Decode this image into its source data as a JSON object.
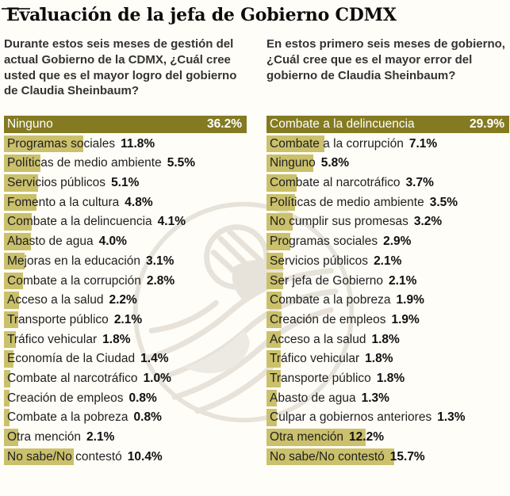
{
  "title": "Evaluación de la jefa de Gobierno CDMX",
  "watermark": "el-universal-eagle-emblem",
  "colors": {
    "bar_highlight": "#847a21",
    "bar": "#cbc06b",
    "text": "#1f1f1f",
    "question": "#333333",
    "background": "#fffdf7",
    "watermark": "#e7e3da"
  },
  "chart_data": [
    {
      "type": "bar",
      "orientation": "horizontal",
      "question": "Durante estos seis meses de gestión del actual Gobierno de la CDMX, ¿Cuál cree usted que es el mayor logro del gobierno de Claudia Sheinbaum?",
      "unit": "%",
      "xlim": [
        0,
        36.2
      ],
      "highlight_index": 0,
      "categories": [
        "Ninguno",
        "Programas sociales",
        "Políticas de medio ambiente",
        "Servicios públicos",
        "Fomento a la cultura",
        "Combate a la delincuencia",
        "Abasto de agua",
        "Mejoras en la educación",
        "Combate a la corrupción",
        "Acceso a la salud",
        "Transporte público",
        "Tráfico vehicular",
        "Economía de la Ciudad",
        "Combate al narcotráfico",
        "Creación de empleos",
        "Combate a la pobreza",
        "Otra mención",
        "No sabe/No contestó"
      ],
      "values": [
        36.2,
        11.8,
        5.5,
        5.1,
        4.8,
        4.1,
        4.0,
        3.1,
        2.8,
        2.2,
        2.1,
        1.8,
        1.4,
        1.0,
        0.8,
        0.8,
        2.1,
        10.4
      ],
      "value_labels": [
        "36.2%",
        "11.8%",
        "5.5%",
        "5.1%",
        "4.8%",
        "4.1%",
        "4.0%",
        "3.1%",
        "2.8%",
        "2.2%",
        "2.1%",
        "1.8%",
        "1.4%",
        "1.0%",
        "0.8%",
        "0.8%",
        "2.1%",
        "10.4%"
      ]
    },
    {
      "type": "bar",
      "orientation": "horizontal",
      "question": "En estos primero seis meses de gobierno, ¿Cuál cree que es el mayor error del gobierno de Claudia Sheinbaum?",
      "unit": "%",
      "xlim": [
        0,
        29.9
      ],
      "highlight_index": 0,
      "categories": [
        "Combate a la delincuencia",
        "Combate a la corrupción",
        "Ninguno",
        "Combate al narcotráfico",
        "Políticas de medio ambiente",
        "No cumplir sus promesas",
        "Programas sociales",
        "Servicios públicos",
        "Ser jefa de Gobierno",
        "Combate a la pobreza",
        "Creación de empleos",
        "Acceso a la salud",
        "Tráfico vehicular",
        "Transporte público",
        "Abasto de agua",
        "Culpar a gobiernos anteriores",
        "Otra mención",
        "No sabe/No contestó"
      ],
      "values": [
        29.9,
        7.1,
        5.8,
        3.7,
        3.5,
        3.2,
        2.9,
        2.1,
        2.1,
        1.9,
        1.9,
        1.8,
        1.8,
        1.8,
        1.3,
        1.3,
        12.2,
        15.7
      ],
      "value_labels": [
        "29.9%",
        "7.1%",
        "5.8%",
        "3.7%",
        "3.5%",
        "3.2%",
        "2.9%",
        "2.1%",
        "2.1%",
        "1.9%",
        "1.9%",
        "1.8%",
        "1.8%",
        "1.8%",
        "1.3%",
        "1.3%",
        "12.2%",
        "15.7%"
      ]
    }
  ]
}
